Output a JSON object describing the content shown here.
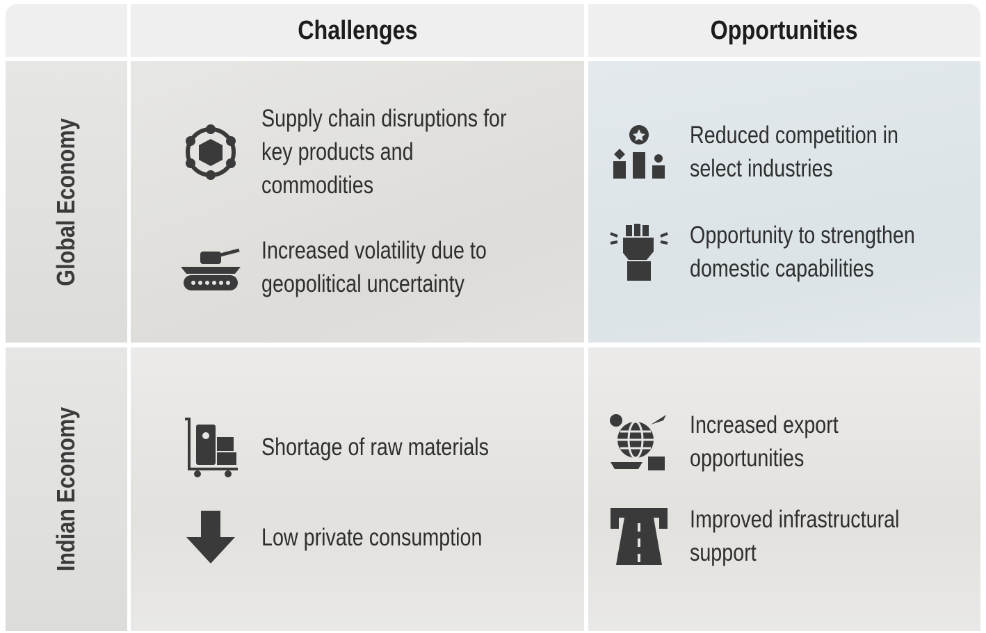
{
  "table": {
    "columns": [
      "Challenges",
      "Opportunities"
    ],
    "rows": [
      {
        "label": "Global Economy",
        "challenges": [
          "Supply chain disruptions for key products and commodities",
          "Increased volatility due to geopolitical uncertainty"
        ],
        "opportunities": [
          "Reduced competition in select industries",
          "Opportunity to strengthen domestic capabilities"
        ]
      },
      {
        "label": "Indian Economy",
        "challenges": [
          "Shortage of raw materials",
          "Low private consumption"
        ],
        "opportunities": [
          "Increased export opportunities",
          "Improved infrastructural support"
        ]
      }
    ]
  }
}
